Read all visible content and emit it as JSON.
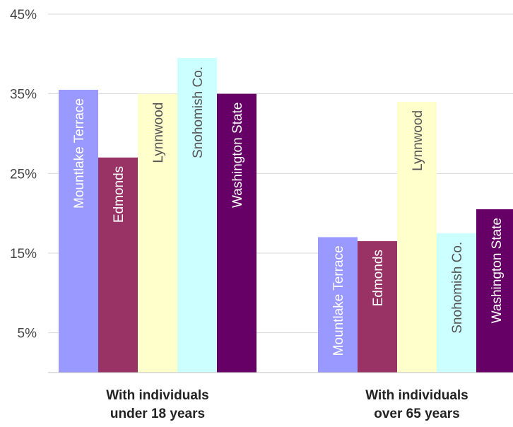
{
  "chart_data": {
    "type": "bar",
    "categories": [
      [
        "With individuals",
        "under 18 years"
      ],
      [
        "With individuals",
        "over 65 years"
      ]
    ],
    "series": [
      {
        "name": "Mountlake Terrace",
        "values": [
          35.5,
          17.0
        ],
        "color": "#9999ff",
        "label_color": "#ffffff"
      },
      {
        "name": "Edmonds",
        "values": [
          27.0,
          16.5
        ],
        "color": "#993366",
        "label_color": "#ffffff"
      },
      {
        "name": "Lynnwood",
        "values": [
          35.0,
          34.0
        ],
        "color": "#ffffcc",
        "label_color": "#555555"
      },
      {
        "name": "Snohomish Co.",
        "values": [
          39.5,
          17.5
        ],
        "color": "#ccffff",
        "label_color": "#555555"
      },
      {
        "name": "Washington State",
        "values": [
          35.0,
          20.5
        ],
        "color": "#660066",
        "label_color": "#ffffff"
      }
    ],
    "yticks": [
      "5%",
      "15%",
      "25%",
      "35%",
      "45%"
    ],
    "ytick_values": [
      5,
      15,
      25,
      35,
      45
    ],
    "ylim": [
      0,
      45
    ],
    "grid": true,
    "title": "",
    "xlabel": "",
    "ylabel": ""
  }
}
